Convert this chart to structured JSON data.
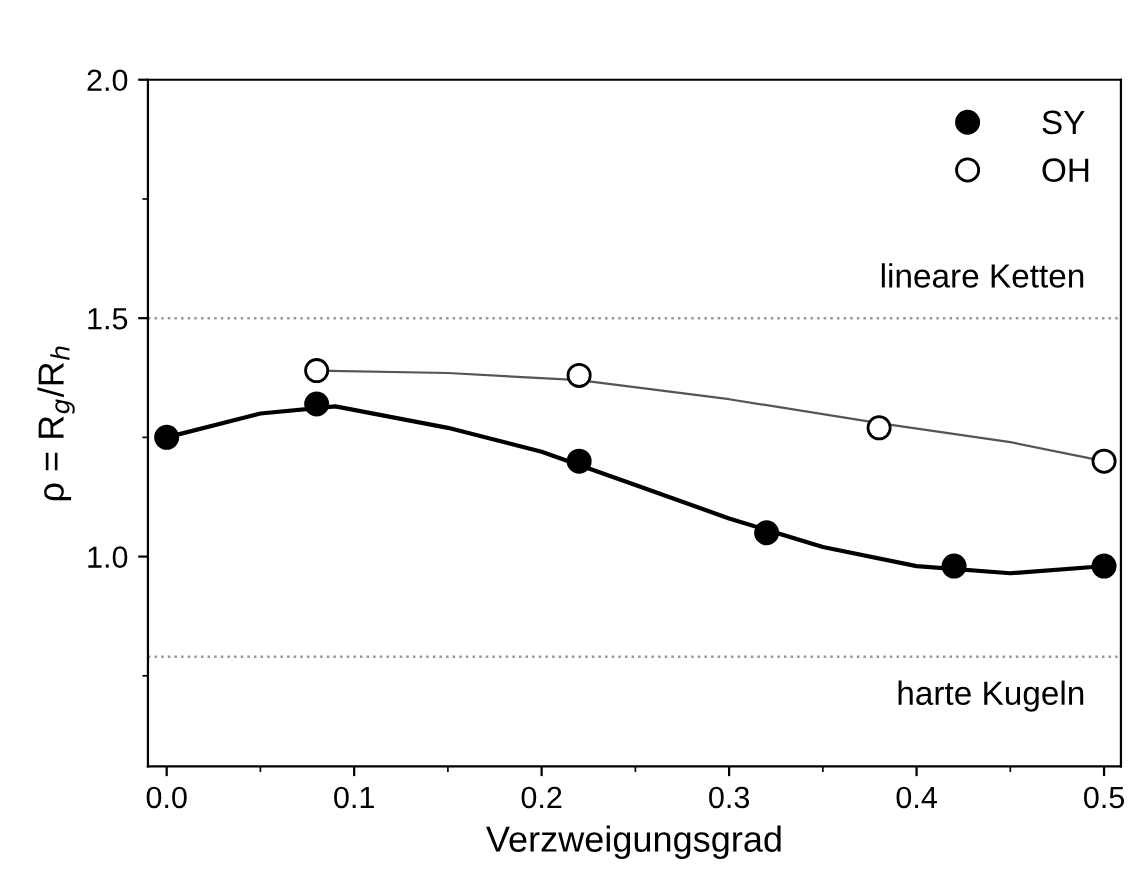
{
  "chart_data": {
    "type": "scatter",
    "xlabel": "Verzweigungsgrad",
    "ylabel": "ρ = R$_{g}$/R$_{h}$",
    "xlim": [
      -0.01,
      0.509
    ],
    "ylim": [
      0.56,
      2.0
    ],
    "xticks": [
      {
        "value": 0.0,
        "label": "0.0"
      },
      {
        "value": 0.1,
        "label": "0.1"
      },
      {
        "value": 0.2,
        "label": "0.2"
      },
      {
        "value": 0.3,
        "label": "0.3"
      },
      {
        "value": 0.4,
        "label": "0.4"
      },
      {
        "value": 0.5,
        "label": "0.5"
      }
    ],
    "yticks": [
      {
        "value": 1.0,
        "label": "1.0"
      },
      {
        "value": 1.5,
        "label": "1.5"
      },
      {
        "value": 2.0,
        "label": "2.0"
      }
    ],
    "grid": false,
    "legend": "top right",
    "series": [
      {
        "name": "SY",
        "marker": "circle",
        "color": "#000000",
        "x": [
          0.0,
          0.08,
          0.22,
          0.32,
          0.42,
          0.5
        ],
        "values": [
          1.25,
          1.32,
          1.2,
          1.05,
          0.98,
          0.98
        ]
      },
      {
        "name": "OH",
        "marker": "circle",
        "color": "#ffffff",
        "x": [
          0.08,
          0.22,
          0.38,
          0.5
        ],
        "values": [
          1.39,
          1.38,
          1.27,
          1.2
        ]
      },
      {
        "type": "line",
        "marker": "none",
        "line_style": "solid",
        "color": "#000000",
        "x": [
          0.0,
          0.05,
          0.09,
          0.15,
          0.2,
          0.25,
          0.3,
          0.35,
          0.4,
          0.45,
          0.5
        ],
        "values": [
          1.25,
          1.3,
          1.315,
          1.27,
          1.22,
          1.15,
          1.08,
          1.02,
          0.98,
          0.965,
          0.98
        ]
      },
      {
        "type": "line",
        "marker": "none",
        "line_style": "solid",
        "color": "#555555",
        "x": [
          0.08,
          0.15,
          0.22,
          0.3,
          0.38,
          0.45,
          0.5
        ],
        "values": [
          1.39,
          1.385,
          1.37,
          1.33,
          1.28,
          1.24,
          1.2
        ]
      }
    ],
    "ref_lines": [
      {
        "axis": "y",
        "value": 1.5,
        "label": "lineare Ketten",
        "color": "#999999",
        "line_style": "dotted"
      },
      {
        "axis": "y",
        "value": 0.79,
        "label": "harte Kugeln",
        "color": "#999999",
        "line_style": "dotted"
      }
    ]
  }
}
